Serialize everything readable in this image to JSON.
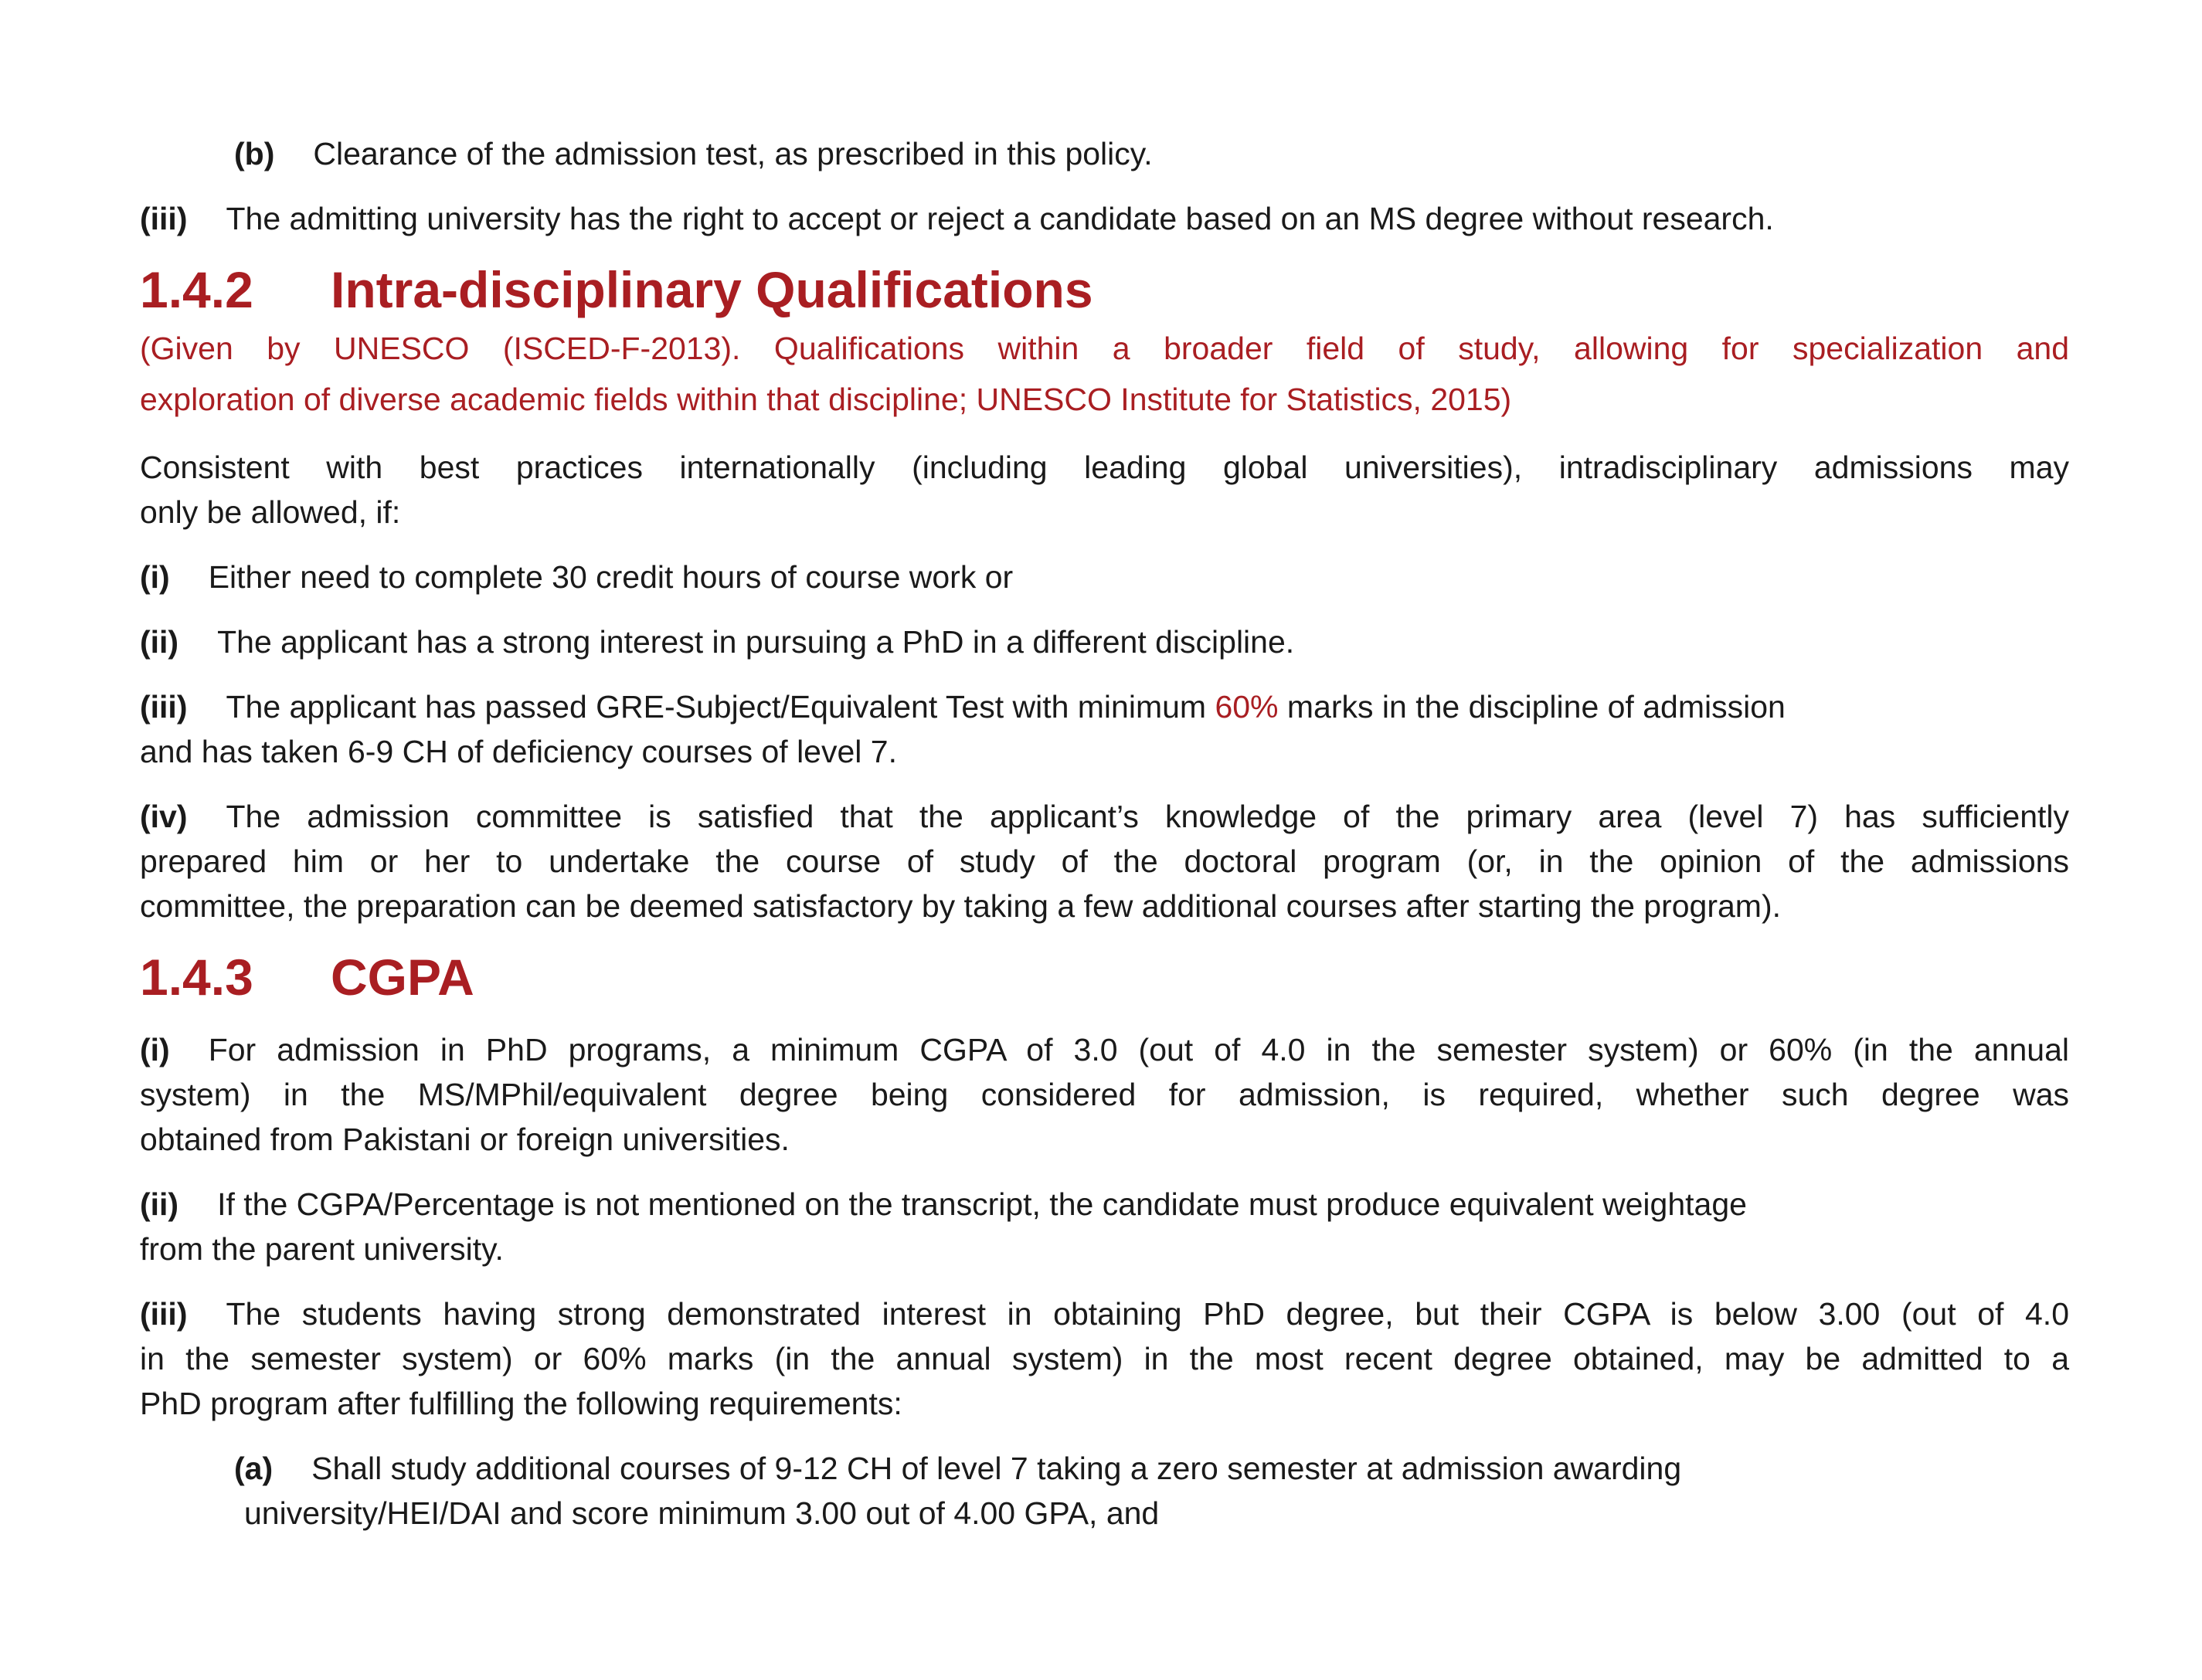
{
  "accent_color": "#a91e22",
  "blocks": [
    {
      "kind": "sub",
      "label": "(b)",
      "lines": [
        "Clearance of the admission test, as prescribed in this policy."
      ]
    },
    {
      "kind": "item",
      "label": "(iii)",
      "lines": [
        "The admitting university has the right to accept or reject a candidate based on an MS degree without research."
      ]
    },
    {
      "kind": "heading",
      "number": "1.4.2",
      "title": "Intra-disciplinary Qualifications"
    },
    {
      "kind": "note",
      "lines": [
        "(Given by UNESCO (ISCED-F-2013). Qualifications within a broader field of study, allowing for specialization and",
        "exploration of diverse academic fields within that discipline; UNESCO Institute for Statistics, 2015)"
      ]
    },
    {
      "kind": "para",
      "lines": [
        "Consistent with best practices internationally (including leading global universities), intradisciplinary admissions may",
        "only be allowed, if:"
      ]
    },
    {
      "kind": "item",
      "label": "(i)",
      "lines": [
        "Either need to complete 30 credit hours of course work or"
      ]
    },
    {
      "kind": "item",
      "label": "(ii)",
      "lines": [
        "The applicant has a strong interest in pursuing a PhD in a different discipline."
      ]
    },
    {
      "kind": "item",
      "label": "(iii)",
      "lines": [
        [
          "The applicant has passed GRE-Subject/Equivalent Test with minimum ",
          {
            "text": "60%",
            "highlight": true
          },
          " marks in the discipline of admission"
        ],
        "and has taken 6-9 CH of deficiency courses of level 7."
      ]
    },
    {
      "kind": "item",
      "label": "(iv)",
      "lines": [
        "The admission committee is satisfied that the applicant’s knowledge of the primary area (level 7) has sufficiently",
        "prepared him or her to undertake the course of study of the doctoral program (or, in the opinion of the admissions",
        "committee, the preparation can be deemed satisfactory by taking a few additional courses after starting the program)."
      ]
    },
    {
      "kind": "heading",
      "number": "1.4.3",
      "title": "CGPA"
    },
    {
      "kind": "item",
      "label": "(i)",
      "lines": [
        "For admission in PhD programs, a minimum CGPA of 3.0 (out of 4.0 in the semester system) or 60% (in the annual",
        "system) in the MS/MPhil/equivalent degree being considered for admission, is required, whether such degree was",
        "obtained from Pakistani or foreign universities."
      ]
    },
    {
      "kind": "item",
      "label": "(ii)",
      "lines": [
        "If the CGPA/Percentage is not mentioned on the transcript, the candidate must produce equivalent weightage",
        "from the parent university."
      ]
    },
    {
      "kind": "item",
      "label": "(iii)",
      "lines": [
        "The students having strong demonstrated interest in obtaining PhD degree, but their CGPA is below 3.00 (out of 4.0",
        "in the semester system) or 60% marks (in the annual system) in the most recent degree obtained, may be admitted to a",
        "PhD program after fulfilling the following requirements:"
      ]
    },
    {
      "kind": "sub",
      "label": "(a)",
      "lines": [
        "Shall study additional courses of 9-12 CH of level 7 taking a zero semester at admission awarding",
        "university/HEI/DAI and score minimum 3.00 out of 4.00 GPA, and"
      ]
    }
  ]
}
